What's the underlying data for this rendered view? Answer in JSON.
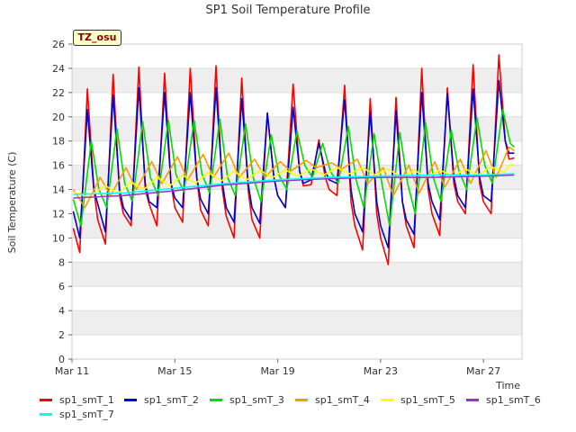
{
  "chart_data": {
    "type": "line",
    "title": "SP1 Soil Temperature Profile",
    "xlabel": "Time",
    "ylabel": "Soil Temperature (C)",
    "badge": "TZ_osu",
    "xlim": [
      11,
      28.5
    ],
    "ylim": [
      0,
      26
    ],
    "x_ticks": [
      {
        "value": 11,
        "label": "Mar 11"
      },
      {
        "value": 15,
        "label": "Mar 15"
      },
      {
        "value": 19,
        "label": "Mar 19"
      },
      {
        "value": 23,
        "label": "Mar 23"
      },
      {
        "value": 27,
        "label": "Mar 27"
      }
    ],
    "y_ticks": [
      0,
      2,
      4,
      6,
      8,
      10,
      12,
      14,
      16,
      18,
      20,
      22,
      24,
      26
    ],
    "grid": "horizontal bands",
    "legend_position": "bottom",
    "series": [
      {
        "name": "sp1_smT_1",
        "color": "#ff0000",
        "x": [
          11.05,
          11.3,
          11.6,
          11.85,
          12.0,
          12.3,
          12.6,
          12.85,
          13.0,
          13.3,
          13.6,
          13.85,
          14.0,
          14.3,
          14.6,
          14.85,
          15.0,
          15.3,
          15.6,
          15.85,
          16.0,
          16.3,
          16.6,
          16.85,
          17.0,
          17.3,
          17.6,
          17.85,
          18.0,
          18.3,
          18.6,
          18.85,
          19.0,
          19.3,
          19.6,
          19.85,
          20.0,
          20.3,
          20.6,
          20.85,
          21.0,
          21.3,
          21.6,
          21.85,
          22.0,
          22.3,
          22.6,
          22.85,
          23.0,
          23.3,
          23.6,
          23.85,
          24.0,
          24.3,
          24.6,
          24.85,
          25.0,
          25.3,
          25.6,
          25.85,
          26.0,
          26.3,
          26.6,
          26.85,
          27.0,
          27.3,
          27.6,
          27.85,
          28.0,
          28.2
        ],
        "y": [
          10.8,
          8.8,
          22.3,
          14.0,
          11.5,
          9.5,
          23.5,
          13.5,
          12.0,
          11.0,
          24.1,
          14.0,
          12.8,
          11.0,
          23.6,
          14.5,
          12.5,
          11.3,
          24.0,
          15.0,
          12.3,
          11.0,
          24.2,
          14.0,
          11.8,
          10.0,
          23.2,
          14.0,
          11.5,
          10.0,
          20.3,
          15.0,
          13.5,
          12.5,
          22.7,
          15.5,
          14.3,
          14.4,
          18.1,
          15.0,
          14.0,
          13.5,
          22.6,
          13.0,
          11.0,
          9.0,
          21.5,
          12.0,
          10.0,
          7.8,
          21.6,
          13.0,
          11.0,
          9.2,
          24.0,
          14.0,
          12.0,
          10.2,
          22.4,
          14.5,
          13.0,
          12.0,
          24.3,
          14.5,
          13.0,
          12.0,
          25.1,
          18.0,
          16.5,
          16.6
        ]
      },
      {
        "name": "sp1_smT_2",
        "color": "#0000cc",
        "x": [
          11.05,
          11.3,
          11.6,
          11.85,
          12.0,
          12.3,
          12.6,
          12.85,
          13.0,
          13.3,
          13.6,
          13.85,
          14.0,
          14.3,
          14.6,
          14.85,
          15.0,
          15.3,
          15.6,
          15.85,
          16.0,
          16.3,
          16.6,
          16.85,
          17.0,
          17.3,
          17.6,
          17.85,
          18.0,
          18.3,
          18.6,
          18.85,
          19.0,
          19.3,
          19.6,
          19.85,
          20.0,
          20.3,
          20.6,
          20.85,
          21.0,
          21.3,
          21.6,
          21.85,
          22.0,
          22.3,
          22.6,
          22.85,
          23.0,
          23.3,
          23.6,
          23.85,
          24.0,
          24.3,
          24.6,
          24.85,
          25.0,
          25.3,
          25.6,
          25.85,
          26.0,
          26.3,
          26.6,
          26.85,
          27.0,
          27.3,
          27.6,
          27.85,
          28.0,
          28.2
        ],
        "y": [
          12.2,
          10.0,
          20.6,
          14.0,
          12.8,
          10.5,
          21.8,
          14.0,
          12.5,
          11.5,
          22.4,
          14.5,
          13.0,
          12.5,
          22.0,
          14.5,
          13.3,
          12.5,
          22.0,
          15.0,
          13.2,
          12.0,
          22.4,
          14.5,
          12.5,
          11.3,
          21.5,
          14.5,
          12.5,
          11.2,
          20.3,
          15.0,
          13.5,
          12.5,
          20.8,
          15.5,
          14.5,
          14.8,
          17.8,
          15.5,
          14.8,
          14.5,
          21.4,
          14.0,
          12.0,
          10.5,
          20.4,
          13.0,
          11.0,
          9.2,
          20.5,
          13.0,
          11.5,
          10.3,
          22.0,
          14.5,
          13.0,
          11.5,
          21.9,
          15.0,
          13.5,
          12.5,
          22.3,
          15.0,
          13.5,
          13.0,
          23.0,
          18.0,
          17.0,
          17.0
        ]
      },
      {
        "name": "sp1_smT_3",
        "color": "#00dd00",
        "x": [
          11.05,
          11.35,
          11.75,
          12.05,
          12.35,
          12.75,
          13.05,
          13.35,
          13.75,
          14.05,
          14.35,
          14.75,
          15.05,
          15.35,
          15.75,
          16.05,
          16.35,
          16.75,
          17.05,
          17.35,
          17.75,
          18.05,
          18.35,
          18.75,
          19.05,
          19.35,
          19.75,
          20.05,
          20.35,
          20.75,
          21.05,
          21.35,
          21.75,
          22.05,
          22.35,
          22.75,
          23.05,
          23.35,
          23.75,
          24.05,
          24.35,
          24.75,
          25.05,
          25.35,
          25.75,
          26.05,
          26.35,
          26.75,
          27.05,
          27.35,
          27.75,
          28.05,
          28.2
        ],
        "y": [
          13.2,
          11.0,
          18.0,
          14.0,
          12.5,
          19.0,
          14.5,
          13.0,
          19.6,
          15.0,
          13.5,
          19.7,
          15.2,
          13.8,
          19.7,
          15.3,
          13.7,
          19.8,
          15.0,
          13.5,
          19.4,
          15.0,
          13.0,
          18.5,
          15.2,
          14.0,
          18.8,
          16.0,
          15.0,
          17.8,
          15.5,
          14.5,
          19.2,
          14.8,
          12.5,
          18.6,
          14.5,
          11.0,
          18.7,
          14.5,
          12.0,
          19.5,
          15.0,
          13.0,
          18.9,
          15.5,
          14.0,
          19.9,
          16.0,
          14.5,
          20.6,
          17.8,
          17.5
        ]
      },
      {
        "name": "sp1_smT_4",
        "color": "#ff9900",
        "x": [
          11.05,
          11.5,
          12.1,
          12.5,
          13.1,
          13.5,
          14.1,
          14.5,
          15.1,
          15.5,
          16.1,
          16.5,
          17.1,
          17.5,
          18.1,
          18.5,
          19.1,
          19.5,
          20.1,
          20.5,
          21.1,
          21.5,
          22.1,
          22.5,
          23.1,
          23.5,
          24.1,
          24.5,
          25.1,
          25.5,
          26.1,
          26.5,
          27.1,
          27.5,
          28.0,
          28.2
        ],
        "y": [
          14.0,
          12.5,
          15.0,
          13.5,
          15.8,
          14.0,
          16.3,
          14.5,
          16.7,
          14.8,
          16.9,
          15.0,
          17.0,
          15.0,
          16.5,
          15.0,
          16.3,
          15.5,
          16.4,
          15.8,
          16.2,
          15.7,
          16.5,
          14.5,
          15.8,
          13.5,
          16.0,
          13.7,
          16.3,
          14.2,
          16.5,
          14.5,
          17.2,
          15.0,
          17.5,
          17.2
        ]
      },
      {
        "name": "sp1_smT_5",
        "color": "#ffff00",
        "x": [
          11.05,
          11.6,
          12.3,
          12.8,
          13.3,
          13.8,
          14.3,
          14.8,
          15.3,
          15.8,
          16.3,
          16.8,
          17.3,
          17.8,
          18.3,
          18.8,
          19.3,
          19.8,
          20.3,
          20.8,
          21.3,
          21.8,
          22.3,
          22.8,
          23.3,
          23.8,
          24.3,
          24.8,
          25.3,
          25.8,
          26.3,
          26.8,
          27.3,
          27.8,
          28.0,
          28.2
        ],
        "y": [
          13.8,
          13.4,
          14.3,
          13.7,
          14.6,
          14.0,
          15.0,
          14.3,
          15.2,
          14.5,
          15.4,
          14.7,
          15.5,
          14.8,
          15.6,
          15.0,
          15.6,
          15.1,
          15.7,
          15.2,
          15.8,
          15.3,
          15.8,
          15.2,
          15.7,
          15.0,
          15.6,
          15.0,
          15.6,
          15.1,
          15.7,
          15.2,
          15.9,
          15.4,
          16.0,
          16.0
        ]
      },
      {
        "name": "sp1_smT_6",
        "color": "#9933cc",
        "x": [
          11.05,
          13.0,
          15.0,
          17.0,
          19.0,
          21.0,
          23.0,
          25.0,
          27.0,
          28.2
        ],
        "y": [
          13.3,
          13.5,
          13.9,
          14.4,
          14.7,
          14.9,
          15.0,
          15.0,
          15.1,
          15.2
        ]
      },
      {
        "name": "sp1_smT_7",
        "color": "#00ffff",
        "x": [
          11.05,
          13.0,
          15.0,
          17.0,
          19.0,
          21.0,
          23.0,
          25.0,
          27.0,
          28.2
        ],
        "y": [
          13.6,
          13.7,
          14.1,
          14.5,
          14.8,
          15.0,
          15.1,
          15.2,
          15.2,
          15.3
        ]
      }
    ]
  }
}
